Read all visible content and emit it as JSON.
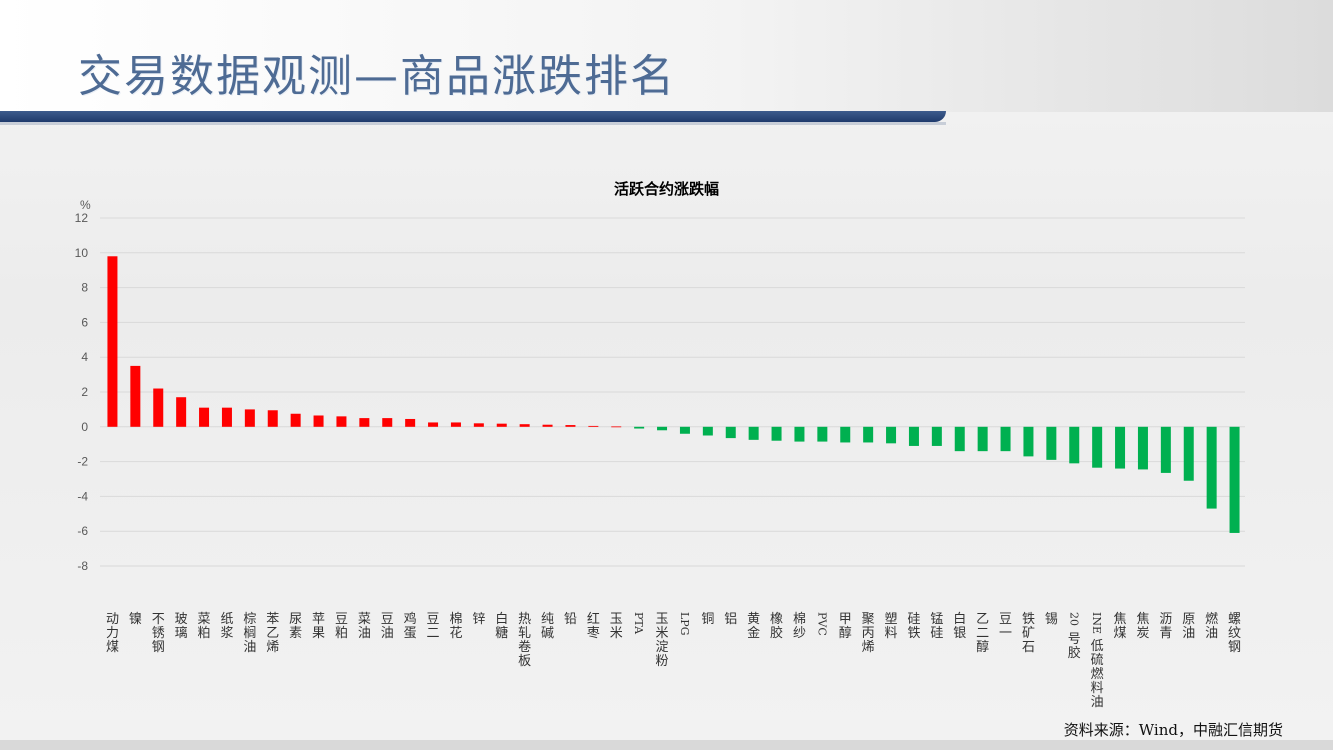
{
  "page": {
    "title": "交易数据观测—商品涨跌排名",
    "source": "资料来源：Wind，中融汇信期货"
  },
  "colors": {
    "up": "#ff0000",
    "down": "#00b050",
    "grid": "#d9d9d9",
    "axis_text": "#595959"
  },
  "chart_data": {
    "type": "bar",
    "title": "活跃合约涨跌幅",
    "ylabel": "%",
    "ylim": [
      -8,
      12
    ],
    "yticks": [
      12,
      10,
      8,
      6,
      4,
      2,
      0,
      -2,
      -4,
      -6,
      -8
    ],
    "grid": true,
    "categories": [
      "动力煤",
      "镍",
      "不锈钢",
      "玻璃",
      "菜粕",
      "纸浆",
      "棕榈油",
      "苯乙烯",
      "尿素",
      "苹果",
      "豆粕",
      "菜油",
      "豆油",
      "鸡蛋",
      "豆二",
      "棉花",
      "锌",
      "白糖",
      "热轧卷板",
      "纯碱",
      "铅",
      "红枣",
      "玉米",
      "PTA",
      "玉米淀粉",
      "LPG",
      "铜",
      "铝",
      "黄金",
      "橡胶",
      "棉纱",
      "PVC",
      "甲醇",
      "聚丙烯",
      "塑料",
      "硅铁",
      "锰硅",
      "白银",
      "乙二醇",
      "豆一",
      "铁矿石",
      "锡",
      "20号胶",
      "INE低硫燃料油",
      "焦煤",
      "焦炭",
      "沥青",
      "原油",
      "燃油",
      "螺纹钢"
    ],
    "values": [
      9.8,
      3.5,
      2.2,
      1.7,
      1.1,
      1.1,
      1.0,
      0.95,
      0.75,
      0.65,
      0.6,
      0.5,
      0.5,
      0.45,
      0.25,
      0.25,
      0.2,
      0.18,
      0.15,
      0.12,
      0.1,
      0.05,
      0.02,
      -0.1,
      -0.2,
      -0.4,
      -0.5,
      -0.65,
      -0.75,
      -0.8,
      -0.85,
      -0.85,
      -0.9,
      -0.9,
      -0.95,
      -1.1,
      -1.1,
      -1.4,
      -1.4,
      -1.4,
      -1.7,
      -1.9,
      -2.1,
      -2.35,
      -2.4,
      -2.45,
      -2.65,
      -3.1,
      -4.7,
      -6.1
    ]
  }
}
